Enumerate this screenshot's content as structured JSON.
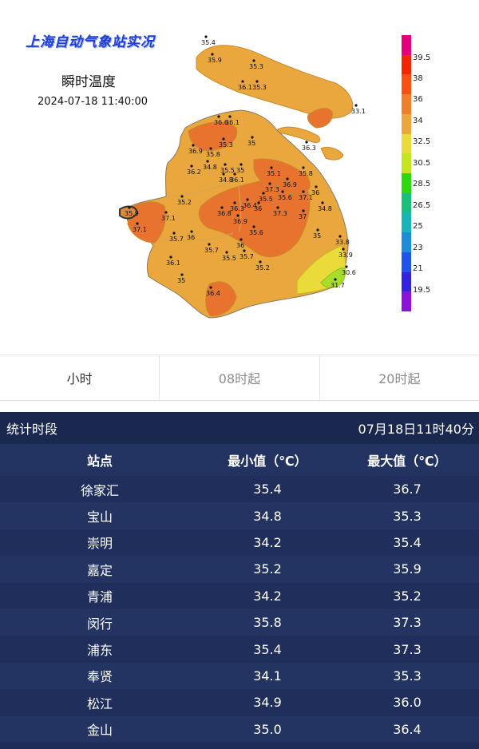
{
  "map": {
    "banner": "上海自动气象站实况",
    "product": "瞬时温度",
    "timestamp": "2024-07-18 11:40:00",
    "station_values": [
      "35.4",
      "35.9",
      "35.3",
      "36.1",
      "35.3",
      "33.1",
      "36.6",
      "36.1",
      "35.3",
      "35",
      "36.3",
      "36.9",
      "35.8",
      "36.2",
      "34.8",
      "35.5",
      "35",
      "34.8",
      "36.1",
      "35.1",
      "36.9",
      "35.8",
      "37.3",
      "35.5",
      "35.6",
      "37.1",
      "36",
      "35.2",
      "36.8",
      "36.3",
      "36.4",
      "36",
      "37.3",
      "37",
      "34.8",
      "35.9",
      "37.1",
      "35.7",
      "36",
      "36.9",
      "35.6",
      "35",
      "33.8",
      "36.1",
      "35.7",
      "35.5",
      "35.7",
      "36",
      "35.2",
      "33.9",
      "30.6",
      "35",
      "36.4",
      "31.7",
      "37.1"
    ],
    "legend": {
      "labels": [
        "39.5",
        "38",
        "36",
        "34",
        "32.5",
        "30.5",
        "28.5",
        "26.5",
        "25",
        "23",
        "21",
        "19.5"
      ],
      "colors": [
        "#e3007b",
        "#f32500",
        "#fb4e14",
        "#f07f2c",
        "#e9a73d",
        "#eadb3a",
        "#c5e51d",
        "#2fd60b",
        "#19c07b",
        "#18b4b8",
        "#1e8cd9",
        "#2152ee",
        "#3323e0",
        "#8a12d9"
      ]
    },
    "fill_colors": {
      "island": "#e9a73d",
      "warm": "#e08a34",
      "hot": "#e7732e",
      "cool": "#c9d93a",
      "coolest": "#a8dd2c",
      "water": "#ffffff"
    }
  },
  "tabs": [
    "小时",
    "08时起",
    "20时起"
  ],
  "stats": {
    "period_label": "统计时段",
    "period_value": "07月18日11时40分",
    "headers": [
      "站点",
      "最小值（℃）",
      "最大值（℃）"
    ],
    "rows": [
      {
        "station": "徐家汇",
        "min": "35.4",
        "max": "36.7"
      },
      {
        "station": "宝山",
        "min": "34.8",
        "max": "35.3"
      },
      {
        "station": "崇明",
        "min": "34.2",
        "max": "35.4"
      },
      {
        "station": "嘉定",
        "min": "35.2",
        "max": "35.9"
      },
      {
        "station": "青浦",
        "min": "34.2",
        "max": "35.2"
      },
      {
        "station": "闵行",
        "min": "35.8",
        "max": "37.3"
      },
      {
        "station": "浦东",
        "min": "35.4",
        "max": "37.3"
      },
      {
        "station": "奉贤",
        "min": "34.1",
        "max": "35.3"
      },
      {
        "station": "松江",
        "min": "34.9",
        "max": "36.0"
      },
      {
        "station": "金山",
        "min": "35.0",
        "max": "36.4"
      }
    ]
  }
}
